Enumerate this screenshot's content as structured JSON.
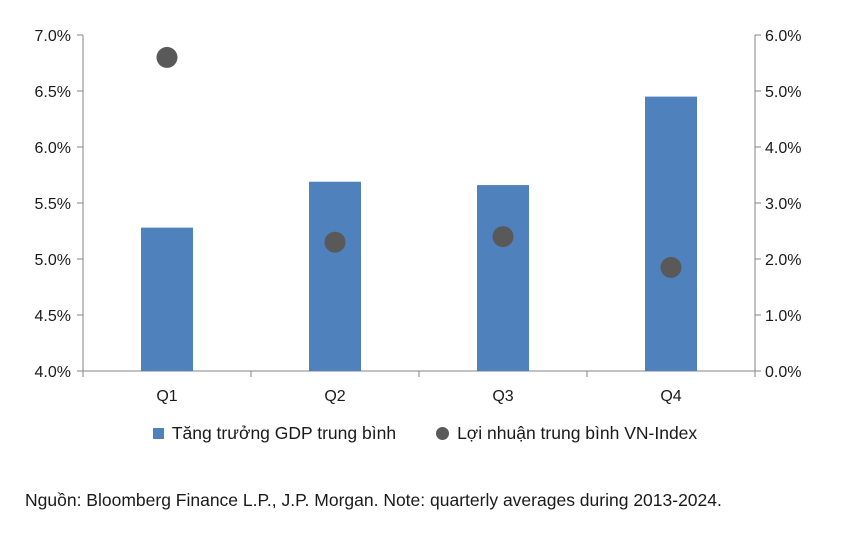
{
  "chart_data": {
    "type": "bar",
    "categories": [
      "Q1",
      "Q2",
      "Q3",
      "Q4"
    ],
    "series": [
      {
        "name": "Tăng trưởng GDP trung bình",
        "kind": "bar",
        "axis": "left",
        "color": "#4f81bd",
        "values": [
          5.28,
          5.69,
          5.66,
          6.45
        ]
      },
      {
        "name": "Lợi nhuận trung bình VN-Index",
        "kind": "scatter",
        "axis": "right",
        "color": "#595959",
        "values": [
          5.6,
          2.3,
          2.4,
          1.85
        ]
      }
    ],
    "left_axis": {
      "min": 4.0,
      "max": 7.0,
      "step": 0.5,
      "ticks": [
        "4.0%",
        "4.5%",
        "5.0%",
        "5.5%",
        "6.0%",
        "6.5%",
        "7.0%"
      ]
    },
    "right_axis": {
      "min": 0.0,
      "max": 6.0,
      "step": 1.0,
      "ticks": [
        "0.0%",
        "1.0%",
        "2.0%",
        "3.0%",
        "4.0%",
        "5.0%",
        "6.0%"
      ]
    },
    "grid": false,
    "legend_position": "bottom"
  },
  "legend": {
    "bar_label": "Tăng trưởng GDP trung bình",
    "dot_label": "Lợi nhuận trung bình VN-Index"
  },
  "source_text": "Nguồn: Bloomberg Finance L.P., J.P. Morgan. Note: quarterly averages during 2013-2024."
}
